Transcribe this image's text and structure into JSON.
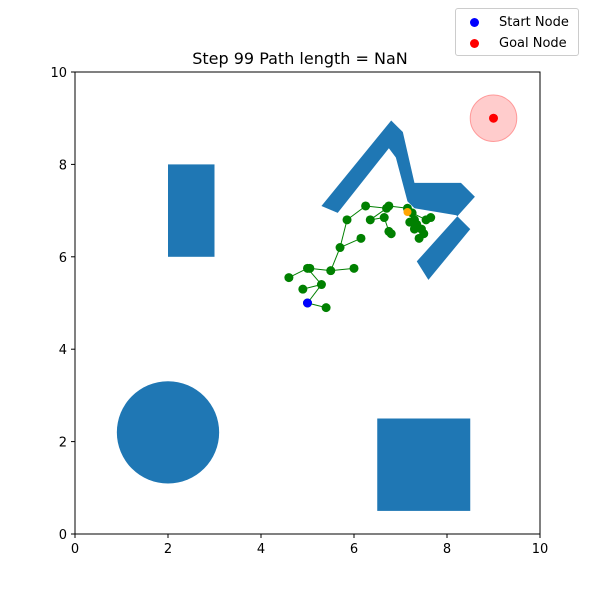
{
  "chart_data": {
    "type": "scatter",
    "title": "Step 99   Path length = NaN",
    "xlim": [
      0,
      10
    ],
    "ylim": [
      0,
      10
    ],
    "xticks": [
      "0",
      "2",
      "4",
      "6",
      "8",
      "10"
    ],
    "yticks": [
      "0",
      "2",
      "4",
      "6",
      "8",
      "10"
    ],
    "grid": false,
    "legend_position": "top-right",
    "colors": {
      "obstacle": "#1f77b4",
      "tree": "#008000",
      "start": "#0000ff",
      "goal": "#ff0000",
      "goal_region": "#ff9999",
      "current": "#ffa500"
    },
    "legend": [
      {
        "label": "Start Node",
        "color": "#0000ff"
      },
      {
        "label": "Goal Node",
        "color": "#ff0000"
      }
    ],
    "start": {
      "x": 5.0,
      "y": 5.0
    },
    "goal": {
      "x": 9.0,
      "y": 9.0,
      "radius": 0.5
    },
    "current_node": {
      "x": 7.15,
      "y": 6.97
    },
    "obstacles": [
      {
        "shape": "rect",
        "x": 2.0,
        "y": 6.0,
        "width": 1.0,
        "height": 2.0
      },
      {
        "shape": "circle",
        "x": 2.0,
        "y": 2.2,
        "radius": 1.1
      },
      {
        "shape": "rect",
        "x": 6.5,
        "y": 0.5,
        "width": 2.0,
        "height": 2.0
      },
      {
        "shape": "polygon",
        "points": [
          [
            5.3,
            7.1
          ],
          [
            6.8,
            8.95
          ],
          [
            7.05,
            8.7
          ],
          [
            7.3,
            7.6
          ],
          [
            8.3,
            7.6
          ],
          [
            8.6,
            7.3
          ],
          [
            7.35,
            5.9
          ],
          [
            7.6,
            5.5
          ],
          [
            8.5,
            6.6
          ],
          [
            8.2,
            6.9
          ],
          [
            7.3,
            7.05
          ],
          [
            7.15,
            7.2
          ],
          [
            6.9,
            8.15
          ],
          [
            6.75,
            8.35
          ],
          [
            5.65,
            6.95
          ]
        ]
      }
    ],
    "tree_nodes": [
      {
        "x": 5.0,
        "y": 5.0
      },
      {
        "x": 5.4,
        "y": 4.9
      },
      {
        "x": 5.3,
        "y": 5.4
      },
      {
        "x": 4.9,
        "y": 5.3
      },
      {
        "x": 5.0,
        "y": 5.75
      },
      {
        "x": 4.6,
        "y": 5.55
      },
      {
        "x": 5.05,
        "y": 5.75
      },
      {
        "x": 5.5,
        "y": 5.7
      },
      {
        "x": 6.0,
        "y": 5.75
      },
      {
        "x": 5.7,
        "y": 6.2
      },
      {
        "x": 6.15,
        "y": 6.4
      },
      {
        "x": 5.85,
        "y": 6.8
      },
      {
        "x": 6.25,
        "y": 7.1
      },
      {
        "x": 6.35,
        "y": 6.8
      },
      {
        "x": 6.65,
        "y": 6.85
      },
      {
        "x": 6.7,
        "y": 7.05
      },
      {
        "x": 6.75,
        "y": 7.1
      },
      {
        "x": 6.75,
        "y": 6.55
      },
      {
        "x": 6.8,
        "y": 6.5
      },
      {
        "x": 7.15,
        "y": 7.05
      },
      {
        "x": 7.25,
        "y": 6.95
      },
      {
        "x": 7.3,
        "y": 6.8
      },
      {
        "x": 7.35,
        "y": 6.7
      },
      {
        "x": 7.45,
        "y": 6.6
      },
      {
        "x": 7.5,
        "y": 6.5
      },
      {
        "x": 7.4,
        "y": 6.4
      },
      {
        "x": 7.55,
        "y": 6.8
      },
      {
        "x": 7.65,
        "y": 6.85
      },
      {
        "x": 7.3,
        "y": 6.6
      },
      {
        "x": 7.2,
        "y": 6.75
      }
    ],
    "tree_edges": [
      [
        0,
        1
      ],
      [
        0,
        2
      ],
      [
        2,
        3
      ],
      [
        2,
        4
      ],
      [
        4,
        5
      ],
      [
        4,
        6
      ],
      [
        6,
        7
      ],
      [
        7,
        8
      ],
      [
        7,
        9
      ],
      [
        9,
        10
      ],
      [
        9,
        11
      ],
      [
        11,
        12
      ],
      [
        12,
        15
      ],
      [
        15,
        16
      ],
      [
        15,
        13
      ],
      [
        13,
        14
      ],
      [
        14,
        17
      ],
      [
        17,
        18
      ],
      [
        16,
        19
      ],
      [
        19,
        20
      ],
      [
        20,
        21
      ],
      [
        21,
        22
      ],
      [
        22,
        23
      ],
      [
        23,
        24
      ],
      [
        24,
        25
      ],
      [
        20,
        26
      ],
      [
        26,
        27
      ],
      [
        21,
        28
      ],
      [
        28,
        29
      ]
    ]
  }
}
